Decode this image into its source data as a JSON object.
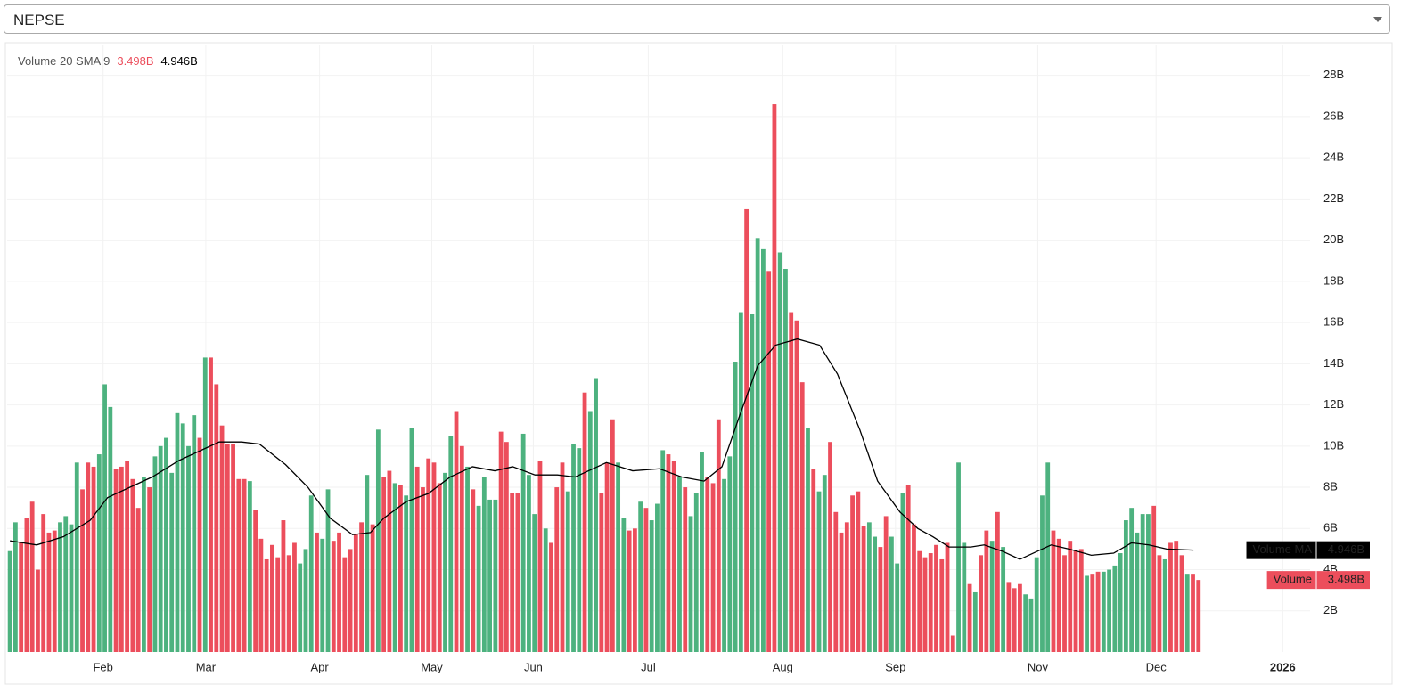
{
  "dropdown": {
    "selected": "NEPSE"
  },
  "chart_data": {
    "type": "bar",
    "legend_title": "Volume 20 SMA 9",
    "xlim": [
      -0.5,
      233
    ],
    "xticks": [
      {
        "value": 16.7,
        "label": "Feb"
      },
      {
        "value": 35.1,
        "label": "Mar"
      },
      {
        "value": 55.5,
        "label": "Apr"
      },
      {
        "value": 75.6,
        "label": "May"
      },
      {
        "value": 93.8,
        "label": "Jun"
      },
      {
        "value": 114.4,
        "label": "Jul"
      },
      {
        "value": 138.5,
        "label": "Aug"
      },
      {
        "value": 158.7,
        "label": "Sep"
      },
      {
        "value": 184.2,
        "label": "Nov"
      },
      {
        "value": 205.4,
        "label": "Dec"
      },
      {
        "value": 228.1,
        "label": "2026"
      }
    ],
    "ylim": [
      0,
      29.5
    ],
    "yticks": [
      {
        "value": 2,
        "label": "2B"
      },
      {
        "value": 4,
        "label": "4B"
      },
      {
        "value": 6,
        "label": "6B"
      },
      {
        "value": 8,
        "label": "8B"
      },
      {
        "value": 10,
        "label": "10B"
      },
      {
        "value": 12,
        "label": "12B"
      },
      {
        "value": 14,
        "label": "14B"
      },
      {
        "value": 16,
        "label": "16B"
      },
      {
        "value": 18,
        "label": "18B"
      },
      {
        "value": 20,
        "label": "20B"
      },
      {
        "value": 22,
        "label": "22B"
      },
      {
        "value": 24,
        "label": "24B"
      },
      {
        "value": 26,
        "label": "26B"
      },
      {
        "value": 28,
        "label": "28B"
      }
    ],
    "grid": true,
    "series": [
      {
        "name": "Volume",
        "type": "bar",
        "up_color": "#4db27f",
        "down_color": "#ec4e5c",
        "last_label": "3.498B",
        "up": [
          true,
          true,
          false,
          false,
          false,
          false,
          false,
          false,
          false,
          true,
          true,
          true,
          true,
          false,
          false,
          false,
          true,
          true,
          true,
          false,
          false,
          false,
          false,
          false,
          true,
          false,
          true,
          true,
          true,
          true,
          true,
          true,
          true,
          true,
          false,
          true,
          false,
          false,
          false,
          false,
          false,
          false,
          false,
          true,
          false,
          false,
          false,
          false,
          false,
          false,
          false,
          false,
          true,
          true,
          true,
          false,
          true,
          true,
          false,
          false,
          false,
          false,
          false,
          false,
          true,
          false,
          true,
          false,
          false,
          true,
          false,
          true,
          true,
          false,
          false,
          false,
          false,
          false,
          true,
          true,
          false,
          false,
          true,
          false,
          true,
          true,
          true,
          true,
          false,
          false,
          false,
          false,
          true,
          true,
          true,
          false,
          true,
          false,
          false,
          false,
          true,
          true,
          true,
          false,
          true,
          true,
          false,
          false,
          false,
          true,
          true,
          false,
          false,
          true,
          false,
          true,
          true,
          true,
          false,
          false,
          true,
          false,
          true,
          true,
          true,
          false,
          false,
          false,
          true,
          true,
          true,
          true,
          false,
          true,
          true,
          true,
          false,
          false,
          true,
          true,
          false,
          false,
          false,
          true,
          false,
          true,
          true,
          false,
          false,
          false,
          false,
          false,
          false,
          false,
          true,
          true,
          false,
          false,
          true,
          true,
          true,
          false,
          false,
          false,
          false,
          false,
          false,
          false,
          false,
          false,
          true,
          true,
          false,
          true,
          false,
          false,
          true,
          false,
          true,
          false,
          false,
          false,
          true,
          true,
          true,
          true,
          true,
          false,
          false,
          false,
          false,
          false,
          false,
          true,
          false,
          false,
          true,
          true,
          true,
          true,
          true,
          true,
          true,
          true,
          true,
          false,
          false,
          true,
          false,
          false,
          false,
          true,
          false,
          false
        ],
        "values": [
          4.9,
          6.3,
          5.3,
          6.5,
          7.3,
          4.0,
          6.7,
          5.8,
          5.9,
          6.3,
          6.6,
          6.2,
          9.2,
          7.9,
          9.2,
          9.0,
          9.6,
          13.0,
          11.9,
          8.9,
          9.0,
          9.3,
          8.4,
          7.0,
          8.5,
          8.0,
          9.5,
          10.0,
          10.4,
          8.7,
          11.6,
          11.1,
          10.0,
          11.5,
          10.4,
          14.3,
          14.3,
          13.0,
          11.0,
          10.1,
          10.1,
          8.4,
          8.4,
          8.3,
          6.9,
          5.5,
          4.5,
          5.2,
          4.6,
          6.4,
          4.7,
          5.3,
          4.3,
          5.0,
          7.6,
          5.8,
          5.5,
          7.9,
          5.4,
          5.8,
          4.6,
          5.0,
          5.7,
          6.3,
          8.6,
          6.2,
          10.8,
          8.5,
          8.8,
          8.2,
          8.1,
          7.6,
          10.9,
          9.0,
          8.0,
          9.4,
          9.2,
          8.2,
          8.7,
          10.5,
          11.7,
          10.0,
          9.0,
          7.9,
          7.1,
          8.5,
          7.4,
          7.4,
          10.7,
          10.2,
          7.7,
          7.7,
          10.6,
          8.6,
          6.7,
          9.3,
          6.0,
          5.3,
          8.0,
          9.2,
          7.8,
          10.1,
          9.9,
          12.6,
          11.7,
          13.3,
          7.7,
          9.2,
          11.3,
          9.2,
          6.5,
          5.9,
          6.0,
          7.3,
          7.0,
          6.4,
          7.2,
          9.8,
          9.6,
          9.3,
          8.5,
          8.0,
          6.6,
          7.7,
          9.7,
          8.5,
          8.2,
          11.3,
          8.4,
          9.5,
          14.1,
          16.5,
          21.5,
          16.4,
          20.1,
          19.6,
          18.5,
          26.6,
          19.4,
          18.6,
          16.5,
          16.1,
          13.1,
          10.9,
          8.9,
          7.8,
          8.6,
          10.2,
          6.8,
          5.8,
          6.3,
          7.6,
          7.8,
          6.1,
          6.3,
          5.6,
          5.1,
          6.6,
          5.6,
          4.3,
          7.7,
          8.1,
          6.2,
          4.9,
          4.6,
          4.8,
          5.2,
          4.5,
          5.3,
          0.8,
          9.2,
          5.3,
          3.3,
          2.9,
          4.7,
          5.9,
          5.4,
          6.8,
          5.1,
          3.4,
          3.1,
          3.3,
          2.8,
          2.6,
          4.6,
          7.6,
          9.2,
          5.9,
          5.5,
          4.7,
          5.4,
          4.9,
          5.0,
          3.7,
          3.8,
          3.9,
          3.9,
          4.0,
          4.2,
          4.8,
          6.4,
          7.0,
          5.8,
          6.7,
          6.7,
          7.1,
          4.7,
          4.5,
          5.3,
          5.4,
          4.7,
          3.8,
          3.8,
          3.498
        ]
      },
      {
        "name": "Volume MA",
        "type": "line",
        "color": "#000000",
        "last_label": "4.946B",
        "x": [
          0,
          4.8,
          9.6,
          14.4,
          17.5,
          22.3,
          25.5,
          30.3,
          35.1,
          37.5,
          41.5,
          44.7,
          49.4,
          53.4,
          57.4,
          61.4,
          64.6,
          67,
          71,
          75,
          78.9,
          82.9,
          86.9,
          90.1,
          94.1,
          98.1,
          101.3,
          106.9,
          111.6,
          116.4,
          120.4,
          124.4,
          127.6,
          130.8,
          134,
          137.2,
          141.1,
          145.1,
          148.3,
          152.3,
          155.5,
          159.5,
          162.7,
          165.4,
          168.3,
          172.2,
          174.6,
          177.8,
          181,
          184.2,
          186.6,
          189.8,
          193.8,
          197.8,
          201,
          204.1,
          207.3,
          212.1
        ],
        "values": [
          5.4,
          5.2,
          5.6,
          6.4,
          7.5,
          8.1,
          8.5,
          9.3,
          9.9,
          10.2,
          10.2,
          10.1,
          9.1,
          8.0,
          6.5,
          5.7,
          5.8,
          6.5,
          7.3,
          7.7,
          8.5,
          9.0,
          8.8,
          9.0,
          8.6,
          8.6,
          8.5,
          9.2,
          8.8,
          8.9,
          8.5,
          8.3,
          9.0,
          11.5,
          13.9,
          14.9,
          15.2,
          14.9,
          13.5,
          10.8,
          8.3,
          6.8,
          6.0,
          5.6,
          5.1,
          5.1,
          5.2,
          4.9,
          4.5,
          4.9,
          5.2,
          5.0,
          4.7,
          4.8,
          5.3,
          5.2,
          5.0,
          4.946
        ]
      }
    ]
  }
}
